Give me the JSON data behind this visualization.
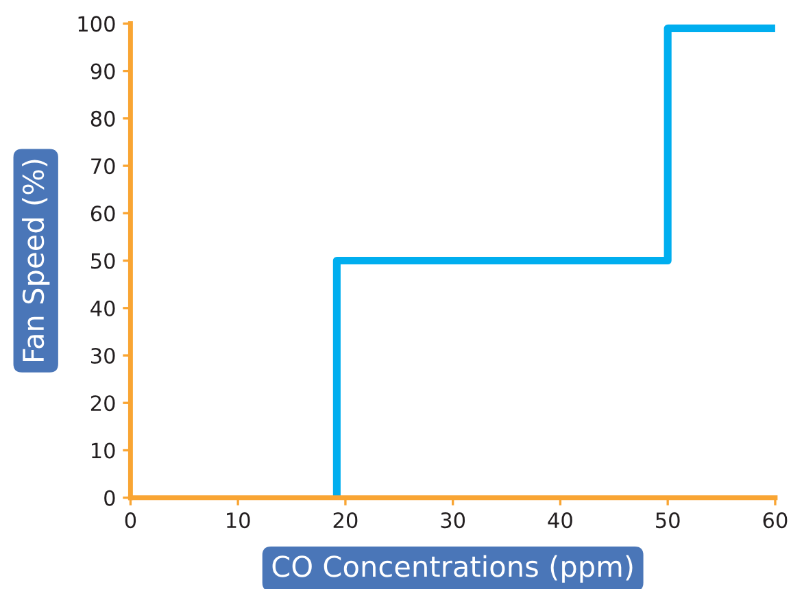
{
  "chart_data": {
    "type": "line",
    "xlabel": "CO Concentrations (ppm)",
    "ylabel": "Fan Speed (%)",
    "series": [
      {
        "color": "#00aeef",
        "x": [
          19.2,
          19.2,
          50,
          50,
          60
        ],
        "values": [
          0,
          50,
          50,
          99,
          99
        ]
      }
    ],
    "xlim": [
      0,
      60
    ],
    "ylim": [
      0,
      100
    ],
    "xticks": [
      0,
      10,
      20,
      30,
      40,
      50,
      60
    ],
    "yticks": [
      0,
      10,
      20,
      30,
      40,
      50,
      60,
      70,
      80,
      90,
      100
    ],
    "marker": "none",
    "line_style": "solid"
  }
}
